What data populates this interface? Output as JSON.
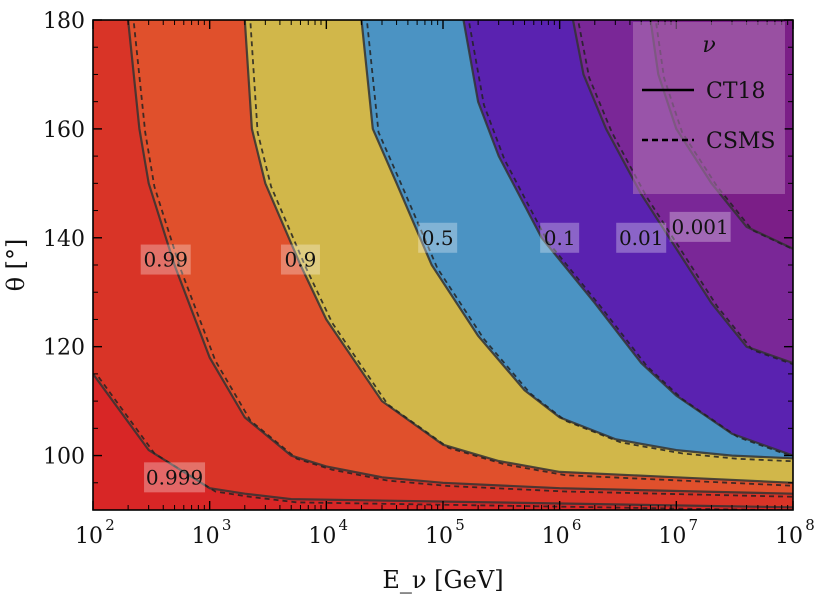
{
  "chart_data": {
    "type": "contour",
    "xlabel": "E_ν [GeV]",
    "ylabel": "θ [°]",
    "xscale": "log",
    "xlim": [
      100,
      100000000
    ],
    "ylim": [
      90,
      180
    ],
    "x_ticks": [
      {
        "value": 100,
        "base": "10",
        "exp": "2"
      },
      {
        "value": 1000,
        "base": "10",
        "exp": "3"
      },
      {
        "value": 10000,
        "base": "10",
        "exp": "4"
      },
      {
        "value": 100000,
        "base": "10",
        "exp": "5"
      },
      {
        "value": 1000000,
        "base": "10",
        "exp": "6"
      },
      {
        "value": 10000000,
        "base": "10",
        "exp": "7"
      },
      {
        "value": 100000000,
        "base": "10",
        "exp": "8"
      }
    ],
    "y_ticks": [
      {
        "value": 100,
        "label": "100"
      },
      {
        "value": 120,
        "label": "120"
      },
      {
        "value": 140,
        "label": "140"
      },
      {
        "value": 160,
        "label": "160"
      },
      {
        "value": 180,
        "label": "180"
      }
    ],
    "regions": [
      {
        "label": "> 0.999",
        "color": "#d82626"
      },
      {
        "label": "0.99 – 0.999",
        "color": "#d93427"
      },
      {
        "label": "0.9 – 0.99",
        "color": "#e0502c"
      },
      {
        "label": "0.5 – 0.9",
        "color": "#d1b74a"
      },
      {
        "label": "0.1 – 0.5",
        "color": "#4b93c3"
      },
      {
        "label": "0.01 – 0.1",
        "color": "#5a22b0"
      },
      {
        "label": "0.001 – 0.01",
        "color": "#7a2797"
      },
      {
        "label": "< 0.001",
        "color": "#7b1e87"
      }
    ],
    "contours": [
      {
        "level": "0.999",
        "points": [
          [
            100,
            115
          ],
          [
            300,
            101
          ],
          [
            1000,
            94
          ],
          [
            2000,
            93
          ],
          [
            5000,
            92
          ],
          [
            100000000,
            90.5
          ]
        ]
      },
      {
        "level": "0.99",
        "points": [
          [
            200,
            180
          ],
          [
            250,
            160
          ],
          [
            300,
            150
          ],
          [
            500,
            135
          ],
          [
            1000,
            118
          ],
          [
            2000,
            107
          ],
          [
            5000,
            100
          ],
          [
            10000,
            98
          ],
          [
            30000,
            96
          ],
          [
            100000,
            95
          ],
          [
            1000000,
            94
          ],
          [
            100000000,
            93
          ]
        ]
      },
      {
        "level": "0.9",
        "points": [
          [
            2000,
            180
          ],
          [
            2300,
            160
          ],
          [
            3000,
            150
          ],
          [
            6000,
            135
          ],
          [
            10000,
            125
          ],
          [
            30000,
            110
          ],
          [
            100000,
            102
          ],
          [
            300000,
            99
          ],
          [
            1000000,
            97
          ],
          [
            10000000,
            96
          ],
          [
            100000000,
            95
          ]
        ]
      },
      {
        "level": "0.5",
        "points": [
          [
            20000,
            180
          ],
          [
            25000,
            160
          ],
          [
            40000,
            150
          ],
          [
            80000,
            135
          ],
          [
            200000,
            122
          ],
          [
            500000,
            112
          ],
          [
            1000000,
            107
          ],
          [
            3000000,
            103
          ],
          [
            10000000,
            101
          ],
          [
            30000000,
            100
          ],
          [
            100000000,
            99.5
          ]
        ]
      },
      {
        "level": "0.1",
        "points": [
          [
            150000,
            180
          ],
          [
            200000,
            165
          ],
          [
            300000,
            155
          ],
          [
            700000,
            140
          ],
          [
            2000000,
            128
          ],
          [
            5000000,
            117
          ],
          [
            10000000,
            111
          ],
          [
            30000000,
            104
          ],
          [
            100000000,
            100
          ]
        ]
      },
      {
        "level": "0.01",
        "points": [
          [
            1300000,
            180
          ],
          [
            1600000,
            170
          ],
          [
            2500000,
            160
          ],
          [
            5000000,
            148
          ],
          [
            10000000,
            138
          ],
          [
            20000000,
            128
          ],
          [
            40000000,
            120
          ],
          [
            100000000,
            117
          ]
        ]
      },
      {
        "level": "0.001",
        "points": [
          [
            6000000,
            180
          ],
          [
            7000000,
            170
          ],
          [
            10000000,
            160
          ],
          [
            20000000,
            150
          ],
          [
            40000000,
            142
          ],
          [
            100000000,
            138
          ]
        ]
      }
    ],
    "contour_labels": [
      {
        "text": "0.999",
        "x": 500,
        "y": 96
      },
      {
        "text": "0.99",
        "x": 420,
        "y": 136
      },
      {
        "text": "0.9",
        "x": 6000,
        "y": 136
      },
      {
        "text": "0.5",
        "x": 90000,
        "y": 140
      },
      {
        "text": "0.1",
        "x": 1000000,
        "y": 140
      },
      {
        "text": "0.01",
        "x": 5000000,
        "y": 140
      },
      {
        "text": "0.001",
        "x": 16000000,
        "y": 142
      }
    ],
    "legend": {
      "title": "ν",
      "position": "top-right",
      "entries": [
        {
          "label": "CT18",
          "style": "solid"
        },
        {
          "label": "CSMS",
          "style": "dashed"
        }
      ]
    }
  }
}
